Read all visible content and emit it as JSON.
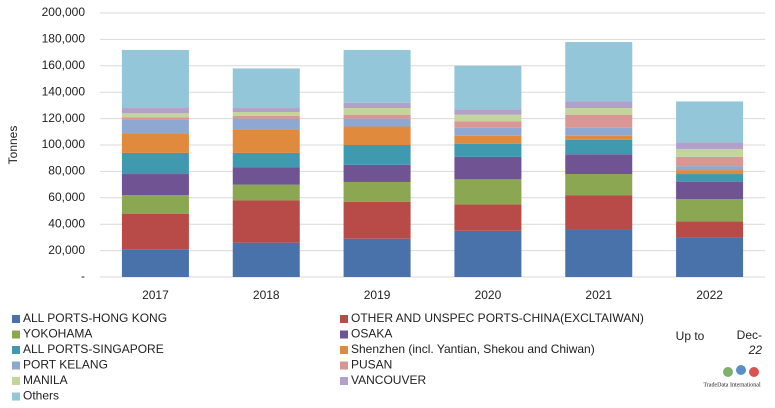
{
  "chart_data": {
    "type": "stacked_bar",
    "ylabel": "Tonnes",
    "categories": [
      "2017",
      "2018",
      "2019",
      "2020",
      "2021",
      "2022"
    ],
    "series": [
      {
        "name": "ALL PORTS-HONG KONG",
        "color": "#4a72aa",
        "values": [
          21000,
          26000,
          29000,
          35000,
          36000,
          30000
        ]
      },
      {
        "name": "OTHER AND UNSPEC PORTS-CHINA(EXCLTAIWAN)",
        "color": "#b84a47",
        "values": [
          27000,
          32000,
          28000,
          20000,
          26000,
          12000
        ]
      },
      {
        "name": "YOKOHAMA",
        "color": "#8ba752",
        "values": [
          14000,
          12000,
          15000,
          19000,
          16000,
          17000
        ]
      },
      {
        "name": "OSAKA",
        "color": "#6f5393",
        "values": [
          16000,
          13000,
          13000,
          17000,
          15000,
          13000
        ]
      },
      {
        "name": "ALL PORTS-SINGAPORE",
        "color": "#3f9ab0",
        "values": [
          16000,
          11000,
          15000,
          10000,
          11000,
          6000
        ]
      },
      {
        "name": "Shenzhen (incl. Yantian, Shekou and Chiwan)",
        "color": "#e08a3e",
        "values": [
          15000,
          18000,
          14000,
          6000,
          3000,
          3000
        ]
      },
      {
        "name": "PORT KELANG",
        "color": "#8fa8d2",
        "values": [
          10000,
          8000,
          6000,
          6000,
          6000,
          3000
        ]
      },
      {
        "name": "PUSAN",
        "color": "#d99694",
        "values": [
          2000,
          2000,
          3000,
          5000,
          10000,
          7000
        ]
      },
      {
        "name": "MANILA",
        "color": "#c2d69b",
        "values": [
          3000,
          3000,
          5000,
          5000,
          5000,
          6000
        ]
      },
      {
        "name": "VANCOUVER",
        "color": "#b1a0c7",
        "values": [
          4000,
          3000,
          4000,
          4000,
          5000,
          5000
        ]
      },
      {
        "name": "Others",
        "color": "#93c6d9",
        "values": [
          44000,
          30000,
          40000,
          33000,
          45000,
          31000
        ]
      }
    ],
    "ylim": [
      0,
      200000
    ],
    "yticks": [
      {
        "value": 0,
        "label": "-"
      },
      {
        "value": 20000,
        "label": "20,000"
      },
      {
        "value": 40000,
        "label": "40,000"
      },
      {
        "value": 60000,
        "label": "60,000"
      },
      {
        "value": 80000,
        "label": "80,000"
      },
      {
        "value": 100000,
        "label": "100,000"
      },
      {
        "value": 120000,
        "label": "120,000"
      },
      {
        "value": 140000,
        "label": "140,000"
      },
      {
        "value": 160000,
        "label": "160,000"
      },
      {
        "value": 180000,
        "label": "180,000"
      },
      {
        "value": 200000,
        "label": "200,000"
      }
    ],
    "grid": true,
    "note": {
      "up_to": "Up to",
      "date": [
        "Dec-",
        "22"
      ],
      "logo": "TradeData International"
    }
  }
}
